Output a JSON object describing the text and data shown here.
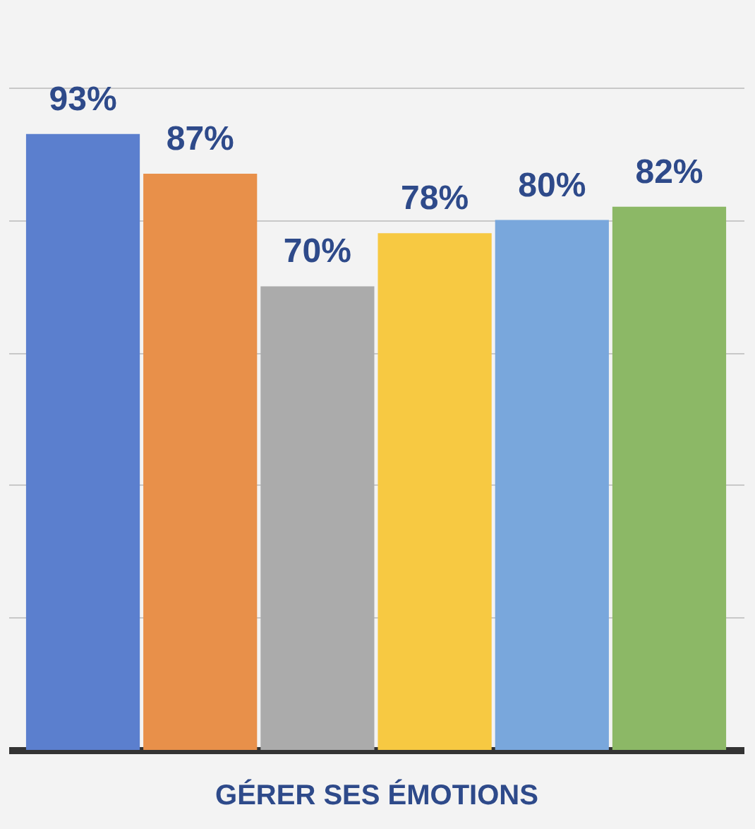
{
  "chart_data": {
    "type": "bar",
    "xlabel": "GÉRER SES ÉMOTIONS",
    "categories": [
      null,
      null,
      null,
      null,
      null,
      null
    ],
    "values": [
      93,
      87,
      70,
      78,
      80,
      82
    ],
    "value_labels": [
      "93%",
      "87%",
      "70%",
      "78%",
      "80%",
      "82%"
    ],
    "colors": [
      "#5b7fce",
      "#e8904a",
      "#ababab",
      "#f7c942",
      "#79a7dc",
      "#8cb866"
    ],
    "ylim": [
      0,
      100
    ],
    "yticks": [
      {
        "value": 0,
        "label": null
      },
      {
        "value": 20,
        "label": null
      },
      {
        "value": 40,
        "label": null
      },
      {
        "value": 60,
        "label": null
      },
      {
        "value": 80,
        "label": null
      },
      {
        "value": 100,
        "label": null
      }
    ],
    "grid": "y",
    "tick_labels": false
  }
}
